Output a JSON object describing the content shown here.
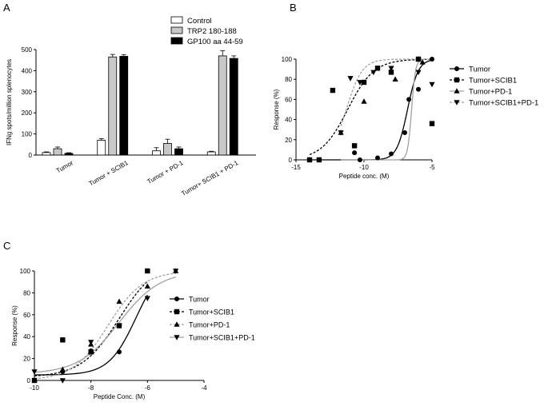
{
  "chart_data": [
    {
      "panel": "A",
      "type": "bar",
      "title": "",
      "xlabel": "",
      "ylabel": "IFNg spots/million splenocytes",
      "ylim": [
        0,
        500
      ],
      "yticks": [
        0,
        100,
        200,
        300,
        400,
        500
      ],
      "categories": [
        "Tumor",
        "Tumor + SCIB1",
        "Tumor + PD-1",
        "Tumor+ SCIB1 + PD-1"
      ],
      "legend_position": "top-right",
      "series": [
        {
          "name": "Control",
          "color": "#ffffff",
          "values": [
            12,
            70,
            20,
            15
          ],
          "errors": [
            3,
            8,
            15,
            3
          ]
        },
        {
          "name": "TRP2 180-188",
          "color": "#c8c8c8",
          "values": [
            30,
            465,
            55,
            470
          ],
          "errors": [
            8,
            12,
            20,
            25
          ]
        },
        {
          "name": "GP100 aa 44-59",
          "color": "#000000",
          "values": [
            8,
            468,
            30,
            458
          ],
          "errors": [
            3,
            8,
            8,
            12
          ]
        }
      ]
    },
    {
      "panel": "B",
      "type": "scatter",
      "title": "",
      "xlabel": "Peptide conc. (M)",
      "ylabel": "Response (%)",
      "xlim": [
        -15,
        -5
      ],
      "ylim": [
        0,
        100
      ],
      "xticks": [
        -15,
        -10,
        -5
      ],
      "yticks": [
        0,
        20,
        40,
        60,
        80,
        100
      ],
      "legend_position": "right",
      "series": [
        {
          "name": "Tumor",
          "marker": "circle",
          "line": "solid",
          "line_color": "#000000",
          "x": [
            -14,
            -13.3,
            -10.7,
            -10.3,
            -9,
            -8,
            -7,
            -6.7,
            -6,
            -5
          ],
          "y": [
            0,
            0,
            7,
            0,
            2,
            6,
            27,
            60,
            70,
            100
          ],
          "fit": {
            "bottom": 0,
            "top": 100,
            "logEC50": -6.8,
            "hill": 1.1
          }
        },
        {
          "name": "Tumor+SCIB1",
          "marker": "square",
          "line": "dashed",
          "line_color": "#000000",
          "x": [
            -14,
            -13.3,
            -12.3,
            -10.7,
            -10,
            -9,
            -8,
            -6,
            -5
          ],
          "y": [
            0,
            0,
            69,
            14,
            77,
            91,
            87,
            100,
            36
          ],
          "fit": {
            "bottom": 0,
            "top": 100,
            "logEC50": -11.2,
            "hill": 0.45
          }
        },
        {
          "name": "Tumor+PD-1",
          "marker": "triangle-up",
          "line": "solid",
          "line_color": "#a0a0a0",
          "x": [
            -11.7,
            -10,
            -7.7,
            -6,
            -5.7
          ],
          "y": [
            27,
            58,
            80,
            100,
            97
          ],
          "fit": {
            "bottom": 0,
            "top": 100,
            "logEC50": -6.5,
            "hill": 3.0
          }
        },
        {
          "name": "Tumor+SCIB1+PD-1",
          "marker": "triangle-down",
          "line": "dashed",
          "line_color": "#a0a0a0",
          "x": [
            -11.7,
            -11,
            -10.3,
            -9.3,
            -8,
            -6,
            -5
          ],
          "y": [
            27,
            81,
            77,
            87,
            91,
            87,
            75
          ],
          "fit": {
            "bottom": 0,
            "top": 100,
            "logEC50": -11.3,
            "hill": 0.75
          }
        }
      ]
    },
    {
      "panel": "C",
      "type": "scatter",
      "title": "",
      "xlabel": "Peptide Conc. (M)",
      "ylabel": "Response (%)",
      "xlim": [
        -10,
        -4
      ],
      "ylim": [
        0,
        100
      ],
      "xticks": [
        -10,
        -8,
        -6,
        -4
      ],
      "yticks": [
        0,
        20,
        40,
        60,
        80,
        100
      ],
      "legend_position": "right",
      "series": [
        {
          "name": "Tumor",
          "marker": "circle",
          "line": "solid",
          "line_color": "#000000",
          "x": [
            -10,
            -9,
            -8,
            -7,
            -6
          ],
          "y": [
            0,
            8,
            27,
            26,
            100
          ],
          "fit": {
            "bottom": 5,
            "top": 110,
            "logEC50": -6.4,
            "hill": 0.9
          }
        },
        {
          "name": "Tumor+SCIB1",
          "marker": "square",
          "line": "dashed",
          "line_color": "#000000",
          "x": [
            -10,
            -9,
            -8,
            -7,
            -6
          ],
          "y": [
            0,
            37,
            26,
            50,
            100
          ],
          "fit": {
            "bottom": 3,
            "top": 110,
            "logEC50": -7.0,
            "hill": 0.65
          }
        },
        {
          "name": "Tumor+PD-1",
          "marker": "triangle-up",
          "line": "dashed",
          "line_color": "#a0a0a0",
          "x": [
            -10,
            -9,
            -8,
            -7,
            -6,
            -5
          ],
          "y": [
            0,
            10,
            33,
            72,
            86,
            100
          ],
          "fit": {
            "bottom": 0,
            "top": 100,
            "logEC50": -7.4,
            "hill": 0.7
          }
        },
        {
          "name": "Tumor+SCIB1+PD-1",
          "marker": "triangle-down",
          "line": "solid",
          "line_color": "#a0a0a0",
          "x": [
            -10,
            -9,
            -8,
            -7,
            -6,
            -5
          ],
          "y": [
            8,
            0,
            35,
            50,
            75,
            100
          ],
          "fit": {
            "bottom": 6,
            "top": 100,
            "logEC50": -7.0,
            "hill": 0.6
          }
        }
      ]
    }
  ]
}
